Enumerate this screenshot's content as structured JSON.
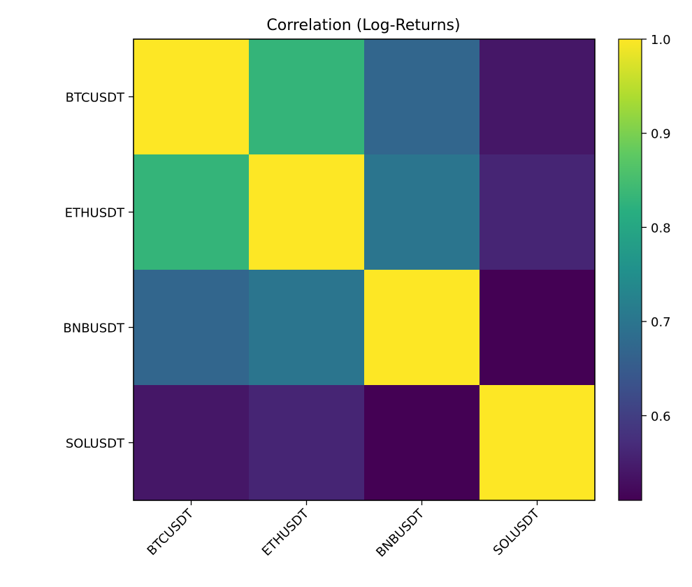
{
  "chart_data": {
    "type": "heatmap",
    "title": "Correlation (Log-Returns)",
    "rows": [
      "BTCUSDT",
      "ETHUSDT",
      "BNBUSDT",
      "SOLUSDT"
    ],
    "columns": [
      "BTCUSDT",
      "ETHUSDT",
      "BNBUSDT",
      "SOLUSDT"
    ],
    "values": [
      [
        1.0,
        0.83,
        0.67,
        0.54
      ],
      [
        0.83,
        1.0,
        0.7,
        0.56
      ],
      [
        0.67,
        0.7,
        1.0,
        0.51
      ],
      [
        0.54,
        0.56,
        0.51,
        1.0
      ]
    ],
    "colorbar": {
      "min": 0.51,
      "max": 1.0,
      "ticks": [
        0.6,
        0.7,
        0.8,
        0.9,
        1.0
      ],
      "tick_labels": [
        "0.6",
        "0.7",
        "0.8",
        "0.9",
        "1.0"
      ],
      "colormap": "viridis",
      "position": "right"
    },
    "grid": false
  }
}
